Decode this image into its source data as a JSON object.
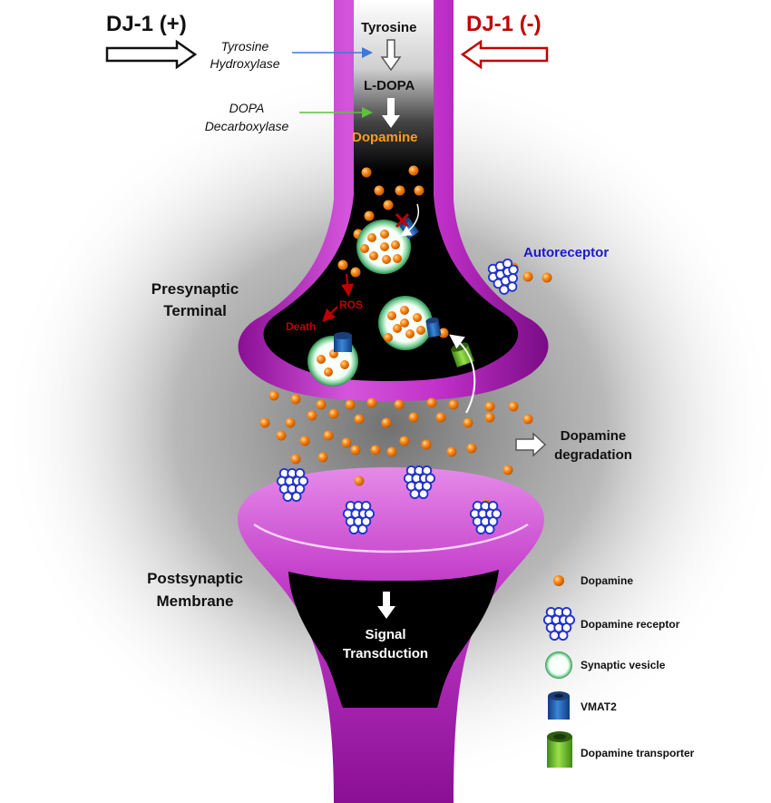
{
  "colors": {
    "membrane": "#b020b8",
    "membrane_light": "#e070e8",
    "dopamine": "#ff8c1a",
    "dj1_pos": "#111111",
    "dj1_neg": "#c00000",
    "autoreceptor_label": "#1a1acc",
    "ros": "#c00000",
    "receptor_blue": "#2233cc",
    "vesicle_green": "#44aa66",
    "vmat2_blue": "#1f5fb0",
    "transporter_green": "#6fbf2a",
    "arrow_blue": "#3a7bd5",
    "arrow_green": "#5cc23a"
  },
  "header": {
    "dj1_positive": "DJ-1 (+)",
    "dj1_negative": "DJ-1 (-)"
  },
  "pathway": {
    "tyrosine": "Tyrosine",
    "ldopa": "L-DOPA",
    "dopamine": "Dopamine",
    "enzyme1_line1": "Tyrosine",
    "enzyme1_line2": "Hydroxylase",
    "enzyme2_line1": "DOPA",
    "enzyme2_line2": "Decarboxylase"
  },
  "labels": {
    "autoreceptor": "Autoreceptor",
    "presynaptic_line1": "Presynaptic",
    "presynaptic_line2": "Terminal",
    "ros": "ROS",
    "death": "Death",
    "degradation_line1": "Dopamine",
    "degradation_line2": "degradation",
    "postsynaptic_line1": "Postsynaptic",
    "postsynaptic_line2": "Membrane",
    "signal_line1": "Signal",
    "signal_line2": "Transduction"
  },
  "legend": [
    {
      "icon": "dopamine-dot-icon",
      "label": "Dopamine"
    },
    {
      "icon": "dopamine-receptor-icon",
      "label": "Dopamine receptor"
    },
    {
      "icon": "synaptic-vesicle-icon",
      "label": "Synaptic vesicle"
    },
    {
      "icon": "vmat2-icon",
      "label": "VMAT2"
    },
    {
      "icon": "dopamine-transporter-icon",
      "label": "Dopamine transporter"
    }
  ]
}
